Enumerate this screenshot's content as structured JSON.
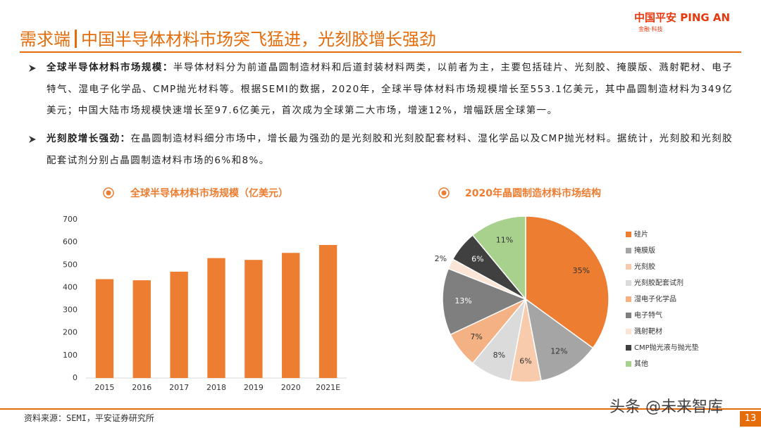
{
  "header": {
    "title_lead": "需求端",
    "title": "中国半导体材料市场突飞猛进，光刻胶增长强劲",
    "logo_cn": "中国平安",
    "logo_en": "PING AN",
    "logo_sub": "金融·科技"
  },
  "bullets": [
    {
      "lead": "全球半导体材料市场规模：",
      "text": "半导体材料分为前道晶圆制造材料和后道封装材料两类，以前者为主，主要包括硅片、光刻胶、掩膜版、溅射靶材、电子特气、湿电子化学品、CMP抛光材料等。根据SEMI的数据，2020年，全球半导体材料市场规模增长至553.1亿美元，其中晶圆制造材料为349亿美元；中国大陆市场规模快速增长至97.6亿美元，首次成为全球第二大市场，增速12%，增幅跃居全球第一。"
    },
    {
      "lead": "光刻胶增长强劲：",
      "text": "在晶圆制造材料细分市场中，增长最为强劲的是光刻胶和光刻胶配套材料、湿化学品以及CMP抛光材料。据统计，光刻胶和光刻胶配套试剂分别占晶圆制造材料市场的6%和8%。"
    }
  ],
  "chart_data": [
    {
      "type": "bar",
      "title": "全球半导体材料市场规模（亿美元）",
      "categories": [
        "2015",
        "2016",
        "2017",
        "2018",
        "2019",
        "2020",
        "2021E"
      ],
      "values": [
        437,
        432,
        470,
        530,
        522,
        553,
        588
      ],
      "color": "#ED7D31",
      "ylim": [
        0,
        700
      ],
      "yticks": [
        0,
        100,
        200,
        300,
        400,
        500,
        600,
        700
      ],
      "grid": false
    },
    {
      "type": "pie",
      "title": "2020年晶圆制造材料市场结构",
      "categories": [
        "硅片",
        "掩膜版",
        "光刻胶",
        "光刻胶配套试剂",
        "湿电子化学品",
        "电子特气",
        "溅射靶材",
        "CMP抛光液与抛光垫",
        "其他"
      ],
      "values": [
        35,
        12,
        6,
        8,
        7,
        13,
        2,
        6,
        11
      ],
      "value_labels": [
        "35%",
        "12%",
        "6%",
        "8%",
        "7%",
        "13%",
        "2%",
        "6%",
        "11%"
      ],
      "colors": [
        "#ED7D31",
        "#A5A5A5",
        "#F8CBAD",
        "#DBDBDB",
        "#F4B183",
        "#7F7F7F",
        "#FBE5D6",
        "#404040",
        "#A9D18E"
      ],
      "legend": "right"
    }
  ],
  "source": "资料来源：SEMI，平安证券研究所",
  "page_number": "13",
  "watermark": "头条 @未来智库"
}
